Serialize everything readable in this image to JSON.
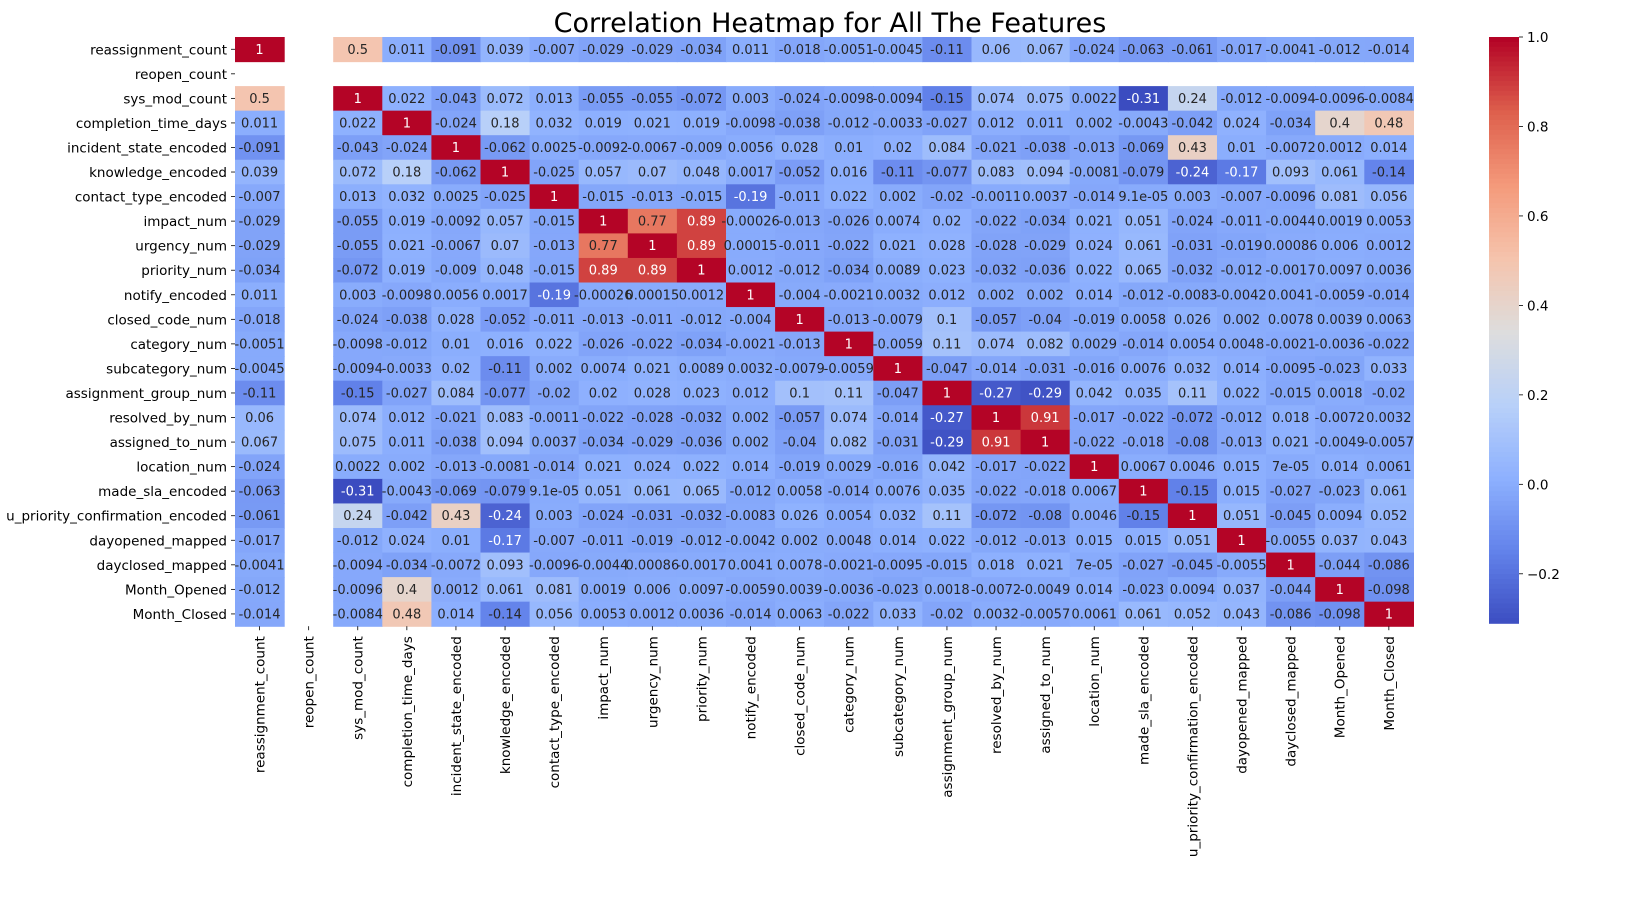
{
  "chart_data": {
    "type": "heatmap",
    "title": "Correlation Heatmap for All The Features",
    "colormap": "coolwarm",
    "vmin": -0.31,
    "vmax": 1.0,
    "colorbar_ticks": [
      "1.0",
      "0.8",
      "0.6",
      "0.4",
      "0.2",
      "0.0",
      "−0.2"
    ],
    "colorbar_tick_values": [
      1.0,
      0.8,
      0.6,
      0.4,
      0.2,
      0.0,
      -0.2
    ],
    "labels": [
      "reassignment_count",
      "reopen_count",
      "sys_mod_count",
      "completion_time_days",
      "incident_state_encoded",
      "knowledge_encoded",
      "contact_type_encoded",
      "impact_num",
      "urgency_num",
      "priority_num",
      "notify_encoded",
      "closed_code_num",
      "category_num",
      "subcategory_num",
      "assignment_group_num",
      "resolved_by_num",
      "assigned_to_num",
      "location_num",
      "made_sla_encoded",
      "u_priority_confirmation_encoded",
      "dayopened_mapped",
      "dayclosed_mapped",
      "Month_Opened",
      "Month_Closed"
    ],
    "matrix": [
      [
        "1",
        null,
        "0.5",
        "0.011",
        "-0.091",
        "0.039",
        "-0.007",
        "-0.029",
        "-0.029",
        "-0.034",
        "0.011",
        "-0.018",
        "-0.0051",
        "-0.0045",
        "-0.11",
        "0.06",
        "0.067",
        "-0.024",
        "-0.063",
        "-0.061",
        "-0.017",
        "-0.0041",
        "-0.012",
        "-0.014"
      ],
      [
        null,
        null,
        null,
        null,
        null,
        null,
        null,
        null,
        null,
        null,
        null,
        null,
        null,
        null,
        null,
        null,
        null,
        null,
        null,
        null,
        null,
        null,
        null,
        null
      ],
      [
        "0.5",
        null,
        "1",
        "0.022",
        "-0.043",
        "0.072",
        "0.013",
        "-0.055",
        "-0.055",
        "-0.072",
        "0.003",
        "-0.024",
        "-0.0098",
        "-0.0094",
        "-0.15",
        "0.074",
        "0.075",
        "0.0022",
        "-0.31",
        "0.24",
        "-0.012",
        "-0.0094",
        "-0.0096",
        "-0.0084"
      ],
      [
        "0.011",
        null,
        "0.022",
        "1",
        "-0.024",
        "0.18",
        "0.032",
        "0.019",
        "0.021",
        "0.019",
        "-0.0098",
        "-0.038",
        "-0.012",
        "-0.0033",
        "-0.027",
        "0.012",
        "0.011",
        "0.002",
        "-0.0043",
        "-0.042",
        "0.024",
        "-0.034",
        "0.4",
        "0.48"
      ],
      [
        "-0.091",
        null,
        "-0.043",
        "-0.024",
        "1",
        "-0.062",
        "0.0025",
        "-0.0092",
        "-0.0067",
        "-0.009",
        "0.0056",
        "0.028",
        "0.01",
        "0.02",
        "0.084",
        "-0.021",
        "-0.038",
        "-0.013",
        "-0.069",
        "0.43",
        "0.01",
        "-0.0072",
        "0.0012",
        "0.014"
      ],
      [
        "0.039",
        null,
        "0.072",
        "0.18",
        "-0.062",
        "1",
        "-0.025",
        "0.057",
        "0.07",
        "0.048",
        "0.0017",
        "-0.052",
        "0.016",
        "-0.11",
        "-0.077",
        "0.083",
        "0.094",
        "-0.0081",
        "-0.079",
        "-0.24",
        "-0.17",
        "0.093",
        "0.061",
        "-0.14"
      ],
      [
        "-0.007",
        null,
        "0.013",
        "0.032",
        "0.0025",
        "-0.025",
        "1",
        "-0.015",
        "-0.013",
        "-0.015",
        "-0.19",
        "-0.011",
        "0.022",
        "0.002",
        "-0.02",
        "-0.0011",
        "0.0037",
        "-0.014",
        "9.1e-05",
        "0.003",
        "-0.007",
        "-0.0096",
        "0.081",
        "0.056"
      ],
      [
        "-0.029",
        null,
        "-0.055",
        "0.019",
        "-0.0092",
        "0.057",
        "-0.015",
        "1",
        "0.77",
        "0.89",
        "-0.00026",
        "-0.013",
        "-0.026",
        "0.0074",
        "0.02",
        "-0.022",
        "-0.034",
        "0.021",
        "0.051",
        "-0.024",
        "-0.011",
        "-0.0044",
        "0.0019",
        "0.0053"
      ],
      [
        "-0.029",
        null,
        "-0.055",
        "0.021",
        "-0.0067",
        "0.07",
        "-0.013",
        "0.77",
        "1",
        "0.89",
        "0.00015",
        "-0.011",
        "-0.022",
        "0.021",
        "0.028",
        "-0.028",
        "-0.029",
        "0.024",
        "0.061",
        "-0.031",
        "-0.019",
        "0.00086",
        "0.006",
        "0.0012"
      ],
      [
        "-0.034",
        null,
        "-0.072",
        "0.019",
        "-0.009",
        "0.048",
        "-0.015",
        "0.89",
        "0.89",
        "1",
        "0.0012",
        "-0.012",
        "-0.034",
        "0.0089",
        "0.023",
        "-0.032",
        "-0.036",
        "0.022",
        "0.065",
        "-0.032",
        "-0.012",
        "-0.0017",
        "0.0097",
        "0.0036"
      ],
      [
        "0.011",
        null,
        "0.003",
        "-0.0098",
        "0.0056",
        "0.0017",
        "-0.19",
        "-0.00026",
        "0.00015",
        "0.0012",
        "1",
        "-0.004",
        "-0.0021",
        "0.0032",
        "0.012",
        "0.002",
        "0.002",
        "0.014",
        "-0.012",
        "-0.0083",
        "-0.0042",
        "0.0041",
        "-0.0059",
        "-0.014"
      ],
      [
        "-0.018",
        null,
        "-0.024",
        "-0.038",
        "0.028",
        "-0.052",
        "-0.011",
        "-0.013",
        "-0.011",
        "-0.012",
        "-0.004",
        "1",
        "-0.013",
        "-0.0079",
        "0.1",
        "-0.057",
        "-0.04",
        "-0.019",
        "0.0058",
        "0.026",
        "0.002",
        "0.0078",
        "0.0039",
        "0.0063"
      ],
      [
        "-0.0051",
        null,
        "-0.0098",
        "-0.012",
        "0.01",
        "0.016",
        "0.022",
        "-0.026",
        "-0.022",
        "-0.034",
        "-0.0021",
        "-0.013",
        "1",
        "-0.0059",
        "0.11",
        "0.074",
        "0.082",
        "0.0029",
        "-0.014",
        "0.0054",
        "0.0048",
        "-0.0021",
        "-0.0036",
        "-0.022"
      ],
      [
        "-0.0045",
        null,
        "-0.0094",
        "-0.0033",
        "0.02",
        "-0.11",
        "0.002",
        "0.0074",
        "0.021",
        "0.0089",
        "0.0032",
        "-0.0079",
        "-0.0059",
        "1",
        "-0.047",
        "-0.014",
        "-0.031",
        "-0.016",
        "0.0076",
        "0.032",
        "0.014",
        "-0.0095",
        "-0.023",
        "0.033"
      ],
      [
        "-0.11",
        null,
        "-0.15",
        "-0.027",
        "0.084",
        "-0.077",
        "-0.02",
        "0.02",
        "0.028",
        "0.023",
        "0.012",
        "0.1",
        "0.11",
        "-0.047",
        "1",
        "-0.27",
        "-0.29",
        "0.042",
        "0.035",
        "0.11",
        "0.022",
        "-0.015",
        "0.0018",
        "-0.02"
      ],
      [
        "0.06",
        null,
        "0.074",
        "0.012",
        "-0.021",
        "0.083",
        "-0.0011",
        "-0.022",
        "-0.028",
        "-0.032",
        "0.002",
        "-0.057",
        "0.074",
        "-0.014",
        "-0.27",
        "1",
        "0.91",
        "-0.017",
        "-0.022",
        "-0.072",
        "-0.012",
        "0.018",
        "-0.0072",
        "0.0032"
      ],
      [
        "0.067",
        null,
        "0.075",
        "0.011",
        "-0.038",
        "0.094",
        "0.0037",
        "-0.034",
        "-0.029",
        "-0.036",
        "0.002",
        "-0.04",
        "0.082",
        "-0.031",
        "-0.29",
        "0.91",
        "1",
        "-0.022",
        "-0.018",
        "-0.08",
        "-0.013",
        "0.021",
        "-0.0049",
        "-0.0057"
      ],
      [
        "-0.024",
        null,
        "0.0022",
        "0.002",
        "-0.013",
        "-0.0081",
        "-0.014",
        "0.021",
        "0.024",
        "0.022",
        "0.014",
        "-0.019",
        "0.0029",
        "-0.016",
        "0.042",
        "-0.017",
        "-0.022",
        "1",
        "0.0067",
        "0.0046",
        "0.015",
        "7e-05",
        "0.014",
        "0.0061"
      ],
      [
        "-0.063",
        null,
        "-0.31",
        "-0.0043",
        "-0.069",
        "-0.079",
        "9.1e-05",
        "0.051",
        "0.061",
        "0.065",
        "-0.012",
        "0.0058",
        "-0.014",
        "0.0076",
        "0.035",
        "-0.022",
        "-0.018",
        "0.0067",
        "1",
        "-0.15",
        "0.015",
        "-0.027",
        "-0.023",
        "0.061"
      ],
      [
        "-0.061",
        null,
        "0.24",
        "-0.042",
        "0.43",
        "-0.24",
        "0.003",
        "-0.024",
        "-0.031",
        "-0.032",
        "-0.0083",
        "0.026",
        "0.0054",
        "0.032",
        "0.11",
        "-0.072",
        "-0.08",
        "0.0046",
        "-0.15",
        "1",
        "0.051",
        "-0.045",
        "0.0094",
        "0.052"
      ],
      [
        "-0.017",
        null,
        "-0.012",
        "0.024",
        "0.01",
        "-0.17",
        "-0.007",
        "-0.011",
        "-0.019",
        "-0.012",
        "-0.0042",
        "0.002",
        "0.0048",
        "0.014",
        "0.022",
        "-0.012",
        "-0.013",
        "0.015",
        "0.015",
        "0.051",
        "1",
        "-0.0055",
        "0.037",
        "0.043"
      ],
      [
        "-0.0041",
        null,
        "-0.0094",
        "-0.034",
        "-0.0072",
        "0.093",
        "-0.0096",
        "-0.0044",
        "0.00086",
        "-0.0017",
        "0.0041",
        "0.0078",
        "-0.0021",
        "-0.0095",
        "-0.015",
        "0.018",
        "0.021",
        "7e-05",
        "-0.027",
        "-0.045",
        "-0.0055",
        "1",
        "-0.044",
        "-0.086"
      ],
      [
        "-0.012",
        null,
        "-0.0096",
        "0.4",
        "0.0012",
        "0.061",
        "0.081",
        "0.0019",
        "0.006",
        "0.0097",
        "-0.0059",
        "0.0039",
        "-0.0036",
        "-0.023",
        "0.0018",
        "-0.0072",
        "-0.0049",
        "0.014",
        "-0.023",
        "0.0094",
        "0.037",
        "-0.044",
        "1",
        "-0.098"
      ],
      [
        "-0.014",
        null,
        "-0.0084",
        "0.48",
        "0.014",
        "-0.14",
        "0.056",
        "0.0053",
        "0.0012",
        "0.0036",
        "-0.014",
        "0.0063",
        "-0.022",
        "0.033",
        "-0.02",
        "0.0032",
        "-0.0057",
        "0.0061",
        "0.061",
        "0.052",
        "0.043",
        "-0.086",
        "-0.098",
        "1"
      ]
    ]
  }
}
